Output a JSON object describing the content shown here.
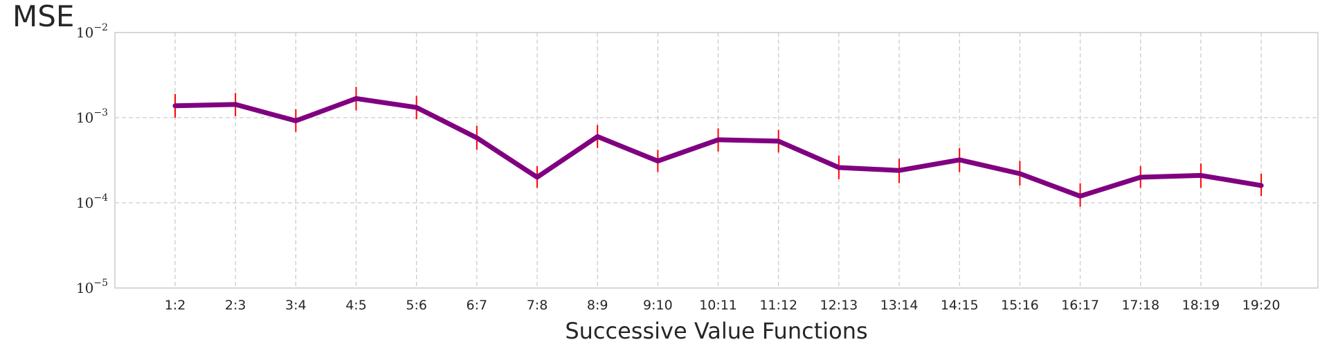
{
  "chart_data": {
    "type": "line",
    "title": "",
    "ylabel": "MSE",
    "xlabel": "Successive Value Functions",
    "yscale": "log",
    "ylim": [
      1e-05,
      0.01
    ],
    "ytick_labels": [
      {
        "base": "10",
        "exp": "−5",
        "value": 1e-05
      },
      {
        "base": "10",
        "exp": "−4",
        "value": 0.0001
      },
      {
        "base": "10",
        "exp": "−3",
        "value": 0.001
      },
      {
        "base": "10",
        "exp": "−2",
        "value": 0.01
      }
    ],
    "categories": [
      "1:2",
      "2:3",
      "3:4",
      "4:5",
      "5:6",
      "6:7",
      "7:8",
      "8:9",
      "9:10",
      "10:11",
      "11:12",
      "12:13",
      "13:14",
      "14:15",
      "15:16",
      "16:17",
      "17:18",
      "18:19",
      "19:20"
    ],
    "series": [
      {
        "values": [
          0.00138,
          0.00143,
          0.00092,
          0.00168,
          0.00132,
          0.00058,
          0.0002,
          0.0006,
          0.00031,
          0.00055,
          0.00053,
          0.00026,
          0.00024,
          0.00032,
          0.00022,
          0.00012,
          0.0002,
          0.00021,
          0.00016
        ],
        "err_low": [
          0.001,
          0.00104,
          0.00068,
          0.00122,
          0.00096,
          0.00042,
          0.00015,
          0.00044,
          0.00023,
          0.0004,
          0.00039,
          0.00019,
          0.00017,
          0.00023,
          0.00016,
          9e-05,
          0.00015,
          0.00015,
          0.00012
        ],
        "err_high": [
          0.0019,
          0.00195,
          0.00126,
          0.0023,
          0.0018,
          0.0008,
          0.00027,
          0.00082,
          0.00042,
          0.00075,
          0.00072,
          0.00036,
          0.00033,
          0.00044,
          0.00031,
          0.00017,
          0.00027,
          0.00029,
          0.00022
        ]
      }
    ],
    "grid": true,
    "colors": {
      "line": "#800080",
      "errorbar": "#ff0000",
      "grid": "#cccccc",
      "axes": "#cccccc"
    }
  }
}
